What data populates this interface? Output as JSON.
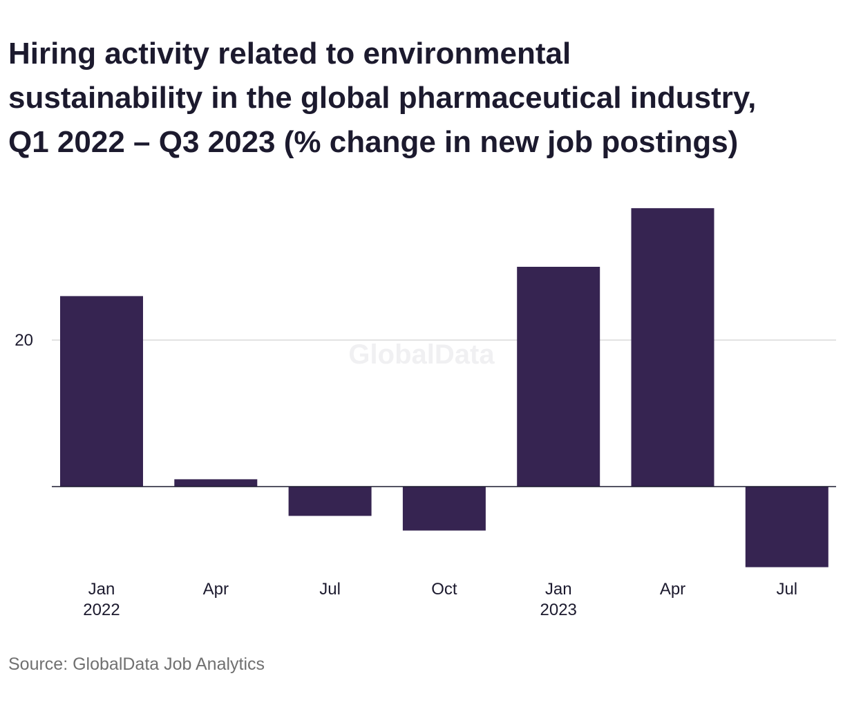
{
  "title_lines": [
    "Hiring activity related to environmental",
    "sustainability in the global pharmaceutical industry,",
    "Q1 2022 – Q3 2023 (% change in new job postings)"
  ],
  "source": "Source: GlobalData Job Analytics",
  "watermark": "GlobalData",
  "colors": {
    "bar": "#362451",
    "gridline": "#d9d9d9",
    "axis": "#1c1a2e",
    "text": "#1c1a2e",
    "source_text": "#707070"
  },
  "chart_data": {
    "type": "bar",
    "title": "Hiring activity related to environmental sustainability in the global pharmaceutical industry, Q1 2022 – Q3 2023 (% change in new job postings)",
    "categories": [
      "Q1 2022",
      "Q2 2022",
      "Q3 2022",
      "Q4 2022",
      "Q1 2023",
      "Q2 2023",
      "Q3 2023"
    ],
    "tick_labels": [
      [
        "Jan",
        "2022"
      ],
      [
        "Apr"
      ],
      [
        "Jul"
      ],
      [
        "Oct"
      ],
      [
        "Jan",
        "2023"
      ],
      [
        "Apr"
      ],
      [
        "Jul"
      ]
    ],
    "values": [
      26,
      1,
      -4,
      -6,
      30,
      38,
      -11
    ],
    "y_ticks": [
      20
    ],
    "ylim": [
      -13,
      38
    ],
    "grid": true,
    "xlabel": "",
    "ylabel": ""
  }
}
